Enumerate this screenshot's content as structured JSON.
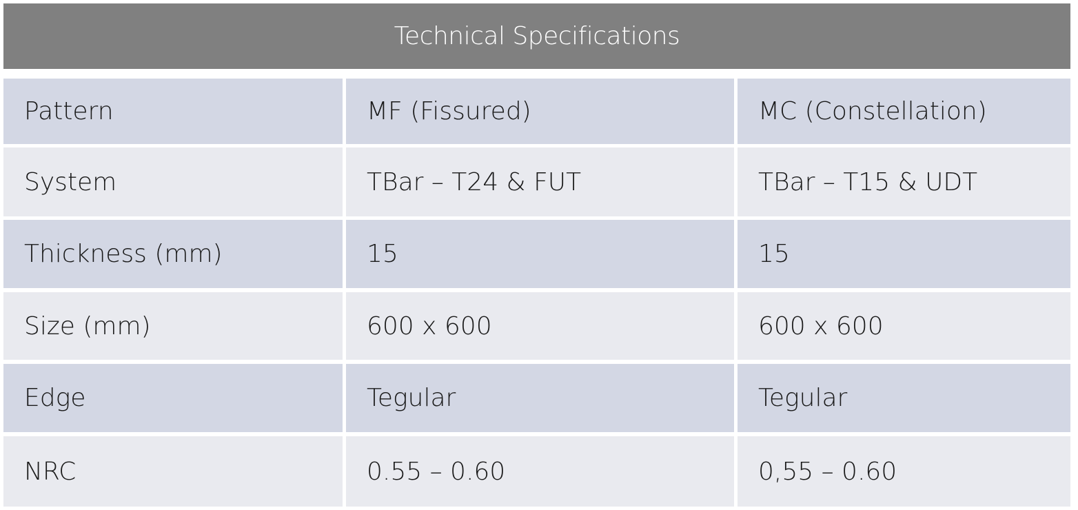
{
  "header": {
    "title": "Technical Specifications"
  },
  "table": {
    "rows": [
      [
        "Pattern",
        "MF (Fissured)",
        "MC (Constellation)"
      ],
      [
        "System",
        "TBar – T24 & FUT",
        "TBar – T15 & UDT"
      ],
      [
        "Thickness (mm)",
        "15",
        "15"
      ],
      [
        "Size (mm)",
        "600 x 600",
        "600 x 600"
      ],
      [
        "Edge",
        "Tegular",
        "Tegular"
      ],
      [
        "NRC",
        "0.55 – 0.60",
        "0,55 – 0.60"
      ]
    ]
  }
}
